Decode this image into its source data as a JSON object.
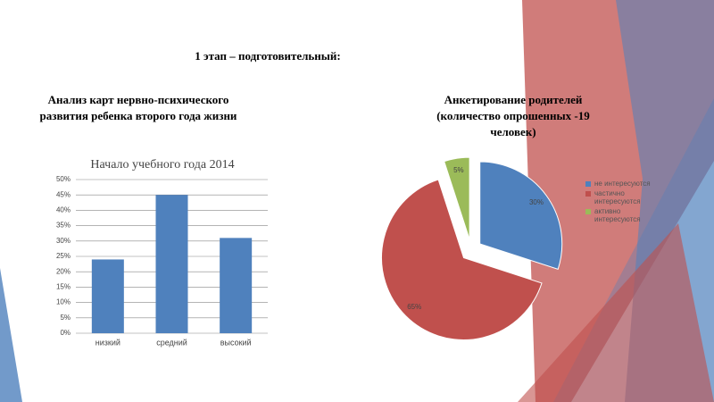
{
  "slide": {
    "heading": "1 этап – подготовительный:",
    "left_caption": "Анализ карт нервно-психического развития ребенка второго года жизни",
    "right_caption": "Анкетирование родителей (количество опрошенных -19 человек)"
  },
  "chart_data": [
    {
      "type": "bar",
      "title": "Начало учебного года 2014",
      "categories": [
        "низкий",
        "средний",
        "высокий"
      ],
      "values": [
        24,
        45,
        31
      ],
      "color": "#4f81bd",
      "ylim": [
        0,
        50
      ],
      "yticks": [
        {
          "value": 0,
          "label": "0%"
        },
        {
          "value": 5,
          "label": "5%"
        },
        {
          "value": 10,
          "label": "10%"
        },
        {
          "value": 15,
          "label": "15%"
        },
        {
          "value": 20,
          "label": "20%"
        },
        {
          "value": 25,
          "label": "25%"
        },
        {
          "value": 30,
          "label": "30%"
        },
        {
          "value": 35,
          "label": "35%"
        },
        {
          "value": 40,
          "label": "40%"
        },
        {
          "value": 45,
          "label": "45%"
        },
        {
          "value": 50,
          "label": "50%"
        }
      ],
      "grid": true
    },
    {
      "type": "pie",
      "categories": [
        "не интересуются",
        "частично интересуются",
        "активно интересуются"
      ],
      "values": [
        30,
        65,
        5
      ],
      "value_labels": [
        "30%",
        "65%",
        "5%"
      ],
      "colors": [
        "#4f81bd",
        "#c0504d",
        "#9bbb59"
      ],
      "legend": "right",
      "exploded": true
    }
  ]
}
